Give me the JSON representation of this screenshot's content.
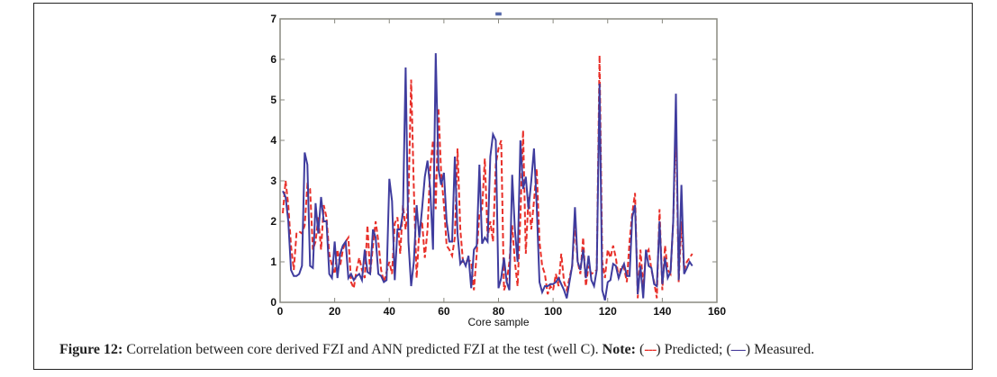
{
  "figure": {
    "caption_label": "Figure 12:",
    "caption_text": " Correlation between core derived FZI and ANN predicted FZI at the test (well C). ",
    "note_label": "Note:",
    "note_open1": " (",
    "pred_symbol": "---",
    "note_pred": ") Predicted; (",
    "meas_symbol": "—",
    "note_meas": ") Measured."
  },
  "chart_data": {
    "type": "line",
    "title": "",
    "xlabel": "Core sample",
    "ylabel": "",
    "xlim": [
      0,
      160
    ],
    "ylim": [
      0,
      7
    ],
    "xticks": [
      0,
      20,
      40,
      60,
      80,
      100,
      120,
      140,
      160
    ],
    "yticks": [
      0,
      1,
      2,
      3,
      4,
      5,
      6,
      7
    ],
    "grid": false,
    "legend": "none",
    "colors": {
      "predicted": "#e8302a",
      "measured": "#3f3c9e",
      "axis": "#8a8a80"
    },
    "x_start": 1,
    "series": [
      {
        "name": "Predicted",
        "style": "dashed",
        "values": [
          2.2,
          3.0,
          2.4,
          1.4,
          0.8,
          1.7,
          1.75,
          1.7,
          1.9,
          2.9,
          2.8,
          1.3,
          1.5,
          2.1,
          1.3,
          2.4,
          2.1,
          1.2,
          0.9,
          0.7,
          1.3,
          0.9,
          1.3,
          1.5,
          1.6,
          0.5,
          0.35,
          0.8,
          1.1,
          0.8,
          0.6,
          1.9,
          0.7,
          1.4,
          2.0,
          1.5,
          0.8,
          0.5,
          0.75,
          1.0,
          0.7,
          1.95,
          2.1,
          1.2,
          2.4,
          1.8,
          2.5,
          5.5,
          2.8,
          0.6,
          1.8,
          2.0,
          1.1,
          1.8,
          3.3,
          4.0,
          2.3,
          4.8,
          3.2,
          2.4,
          1.4,
          1.3,
          1.15,
          1.6,
          3.8,
          1.8,
          1.0,
          1.0,
          1.05,
          1.0,
          0.3,
          1.2,
          2.2,
          2.3,
          3.55,
          1.6,
          2.0,
          1.5,
          3.4,
          3.8,
          4.0,
          0.3,
          0.5,
          1.0,
          1.9,
          1.0,
          0.4,
          2.1,
          4.25,
          1.2,
          2.6,
          1.8,
          2.5,
          3.3,
          1.5,
          0.9,
          0.7,
          0.2,
          0.4,
          0.3,
          0.7,
          0.4,
          1.2,
          0.5,
          0.3,
          0.6,
          0.9,
          1.9,
          1.0,
          0.7,
          1.6,
          0.4,
          0.9,
          0.7,
          0.75,
          0.8,
          6.1,
          1.0,
          0.6,
          1.3,
          1.1,
          1.4,
          1.1,
          0.6,
          0.9,
          0.85,
          0.5,
          1.5,
          2.2,
          2.7,
          0.1,
          1.3,
          0.4,
          1.2,
          1.3,
          0.8,
          0.5,
          0.1,
          2.3,
          0.3,
          1.4,
          0.8,
          0.7,
          2.0,
          4.5,
          0.5,
          2.0,
          0.8,
          1.0,
          1.1,
          1.2
        ]
      },
      {
        "name": "Measured",
        "style": "solid",
        "values": [
          2.75,
          2.6,
          2.0,
          0.8,
          0.65,
          0.65,
          0.7,
          0.9,
          3.7,
          3.4,
          0.9,
          0.85,
          2.45,
          1.7,
          2.6,
          2.0,
          2.0,
          0.7,
          0.6,
          1.5,
          0.6,
          1.2,
          1.4,
          1.5,
          0.6,
          0.7,
          0.55,
          0.65,
          0.7,
          0.55,
          1.3,
          0.75,
          0.7,
          1.8,
          1.6,
          0.7,
          0.65,
          0.5,
          0.55,
          3.05,
          2.5,
          0.55,
          1.8,
          1.8,
          2.2,
          5.8,
          1.5,
          0.4,
          1.0,
          2.4,
          1.6,
          2.3,
          3.1,
          3.5,
          2.8,
          1.3,
          6.15,
          3.3,
          2.9,
          3.2,
          2.0,
          1.5,
          1.5,
          3.6,
          1.7,
          0.95,
          1.05,
          0.9,
          1.15,
          0.35,
          1.3,
          1.4,
          3.4,
          1.45,
          1.6,
          1.5,
          3.6,
          4.15,
          4.0,
          0.35,
          0.6,
          1.1,
          0.5,
          0.3,
          3.15,
          1.8,
          1.0,
          4.0,
          2.8,
          3.1,
          2.3,
          3.0,
          3.8,
          2.4,
          0.5,
          0.25,
          0.4,
          0.4,
          0.45,
          0.45,
          0.5,
          0.6,
          0.45,
          0.3,
          0.1,
          0.5,
          0.9,
          2.35,
          1.0,
          0.8,
          1.3,
          0.6,
          1.15,
          0.55,
          0.4,
          0.8,
          5.4,
          0.3,
          0.05,
          0.5,
          0.55,
          0.95,
          0.9,
          0.6,
          0.8,
          0.95,
          0.65,
          0.65,
          2.1,
          2.4,
          0.2,
          0.9,
          0.1,
          1.3,
          0.9,
          0.85,
          0.45,
          0.4,
          2.0,
          0.45,
          1.1,
          0.6,
          0.75,
          2.0,
          5.15,
          0.55,
          2.9,
          0.7,
          0.85,
          1.0,
          0.9
        ]
      }
    ]
  }
}
